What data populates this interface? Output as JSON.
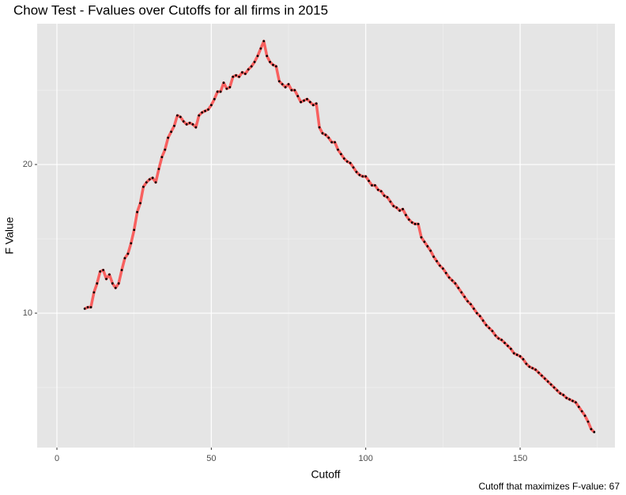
{
  "chart_data": {
    "type": "line",
    "title": "Chow Test - Fvalues over Cutoffs for all firms in 2015",
    "xlabel": "Cutoff",
    "ylabel": "F Value",
    "caption": "Cutoff that maximizes F-value: 67",
    "color": "#f8605f",
    "point_color": "#000000",
    "xlim": [
      -6.4,
      180.7
    ],
    "ylim": [
      0.96,
      29.47
    ],
    "xticks": [
      0,
      50,
      100,
      150
    ],
    "yticks": [
      10,
      20
    ],
    "xminor": [
      25,
      75,
      125,
      175
    ],
    "yminor": [
      5,
      15,
      25
    ],
    "grid": true,
    "x": [
      9,
      10,
      11,
      12,
      13,
      14,
      15,
      16,
      17,
      18,
      19,
      20,
      21,
      22,
      23,
      24,
      25,
      26,
      27,
      28,
      29,
      30,
      31,
      32,
      33,
      34,
      35,
      36,
      37,
      38,
      39,
      40,
      41,
      42,
      43,
      44,
      45,
      46,
      47,
      48,
      49,
      50,
      51,
      52,
      53,
      54,
      55,
      56,
      57,
      58,
      59,
      60,
      61,
      62,
      63,
      64,
      65,
      66,
      67,
      68,
      69,
      70,
      71,
      72,
      73,
      74,
      75,
      76,
      77,
      78,
      79,
      80,
      81,
      82,
      83,
      84,
      85,
      86,
      87,
      88,
      89,
      90,
      91,
      92,
      93,
      94,
      95,
      96,
      97,
      98,
      99,
      100,
      101,
      102,
      103,
      104,
      105,
      106,
      107,
      108,
      109,
      110,
      111,
      112,
      113,
      114,
      115,
      116,
      117,
      118,
      119,
      120,
      121,
      122,
      123,
      124,
      125,
      126,
      127,
      128,
      129,
      130,
      131,
      132,
      133,
      134,
      135,
      136,
      137,
      138,
      139,
      140,
      141,
      142,
      143,
      144,
      145,
      146,
      147,
      148,
      149,
      150,
      151,
      152,
      153,
      154,
      155,
      156,
      157,
      158,
      159,
      160,
      161,
      162,
      163,
      164,
      165,
      166,
      167,
      168,
      169,
      170,
      171,
      172,
      173,
      174
    ],
    "values": [
      10.3,
      10.4,
      10.4,
      11.4,
      12.0,
      12.8,
      12.9,
      12.3,
      12.6,
      12.0,
      11.7,
      12.0,
      12.9,
      13.7,
      14.0,
      14.7,
      15.6,
      16.8,
      17.4,
      18.5,
      18.8,
      19.0,
      19.1,
      18.8,
      19.7,
      20.5,
      21.0,
      21.8,
      22.2,
      22.6,
      23.3,
      23.2,
      22.9,
      22.7,
      22.8,
      22.7,
      22.5,
      23.3,
      23.5,
      23.6,
      23.7,
      24.0,
      24.4,
      24.9,
      24.9,
      25.5,
      25.1,
      25.2,
      25.9,
      26.0,
      25.9,
      26.2,
      26.1,
      26.4,
      26.6,
      26.9,
      27.3,
      27.8,
      28.3,
      27.3,
      26.9,
      26.7,
      26.6,
      25.6,
      25.4,
      25.2,
      25.4,
      25.0,
      25.0,
      24.6,
      24.2,
      24.3,
      24.4,
      24.2,
      24.0,
      24.1,
      22.5,
      22.1,
      22.0,
      21.8,
      21.5,
      21.5,
      21.0,
      20.7,
      20.4,
      20.2,
      20.1,
      19.8,
      19.5,
      19.3,
      19.2,
      19.2,
      18.9,
      18.6,
      18.6,
      18.3,
      18.2,
      17.9,
      17.8,
      17.5,
      17.2,
      17.1,
      16.9,
      17.0,
      16.6,
      16.3,
      16.1,
      16.0,
      16.0,
      15.1,
      14.8,
      14.5,
      14.2,
      13.8,
      13.5,
      13.2,
      13.0,
      12.7,
      12.4,
      12.2,
      12.0,
      11.7,
      11.4,
      11.1,
      10.8,
      10.6,
      10.3,
      10.0,
      9.8,
      9.5,
      9.2,
      9.0,
      8.8,
      8.5,
      8.3,
      8.2,
      8.0,
      7.8,
      7.6,
      7.3,
      7.2,
      7.1,
      6.9,
      6.6,
      6.4,
      6.3,
      6.2,
      6.0,
      5.8,
      5.6,
      5.4,
      5.2,
      5.0,
      4.8,
      4.6,
      4.5,
      4.3,
      4.2,
      4.1,
      4.0,
      3.7,
      3.4,
      3.1,
      2.7,
      2.2,
      2.0
    ]
  }
}
